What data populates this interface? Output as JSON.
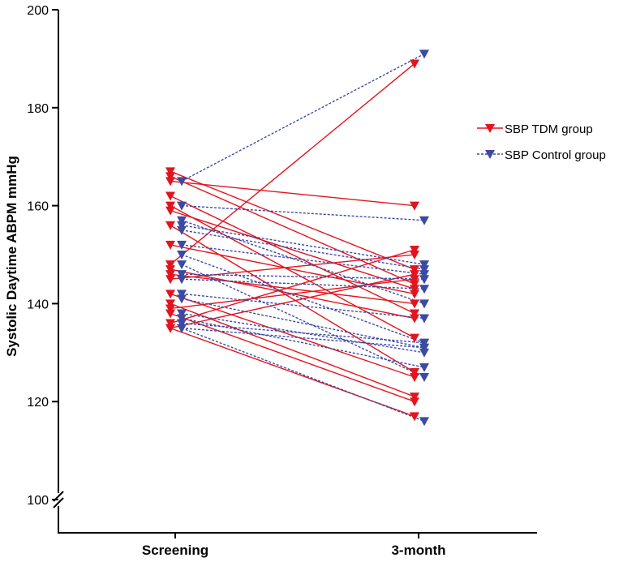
{
  "chart_data": {
    "type": "line",
    "ylabel": "Systolic Daytime ABPM mmHg",
    "categories": [
      "Screening",
      "3-month"
    ],
    "ylim": [
      100,
      200
    ],
    "yticks": [
      "100",
      "120",
      "140",
      "160",
      "180",
      "200"
    ],
    "colors": {
      "tdm": "#e3141e",
      "control": "#3b4aa3"
    },
    "series": [
      {
        "name": "SBP TDM group",
        "pairs": [
          [
            167,
            147
          ],
          [
            166,
            144
          ],
          [
            165,
            160
          ],
          [
            162,
            138
          ],
          [
            160,
            133
          ],
          [
            159,
            143
          ],
          [
            156,
            126
          ],
          [
            152,
            142
          ],
          [
            148,
            189
          ],
          [
            147,
            137
          ],
          [
            146,
            140
          ],
          [
            145,
            150
          ],
          [
            142,
            125
          ],
          [
            140,
            121
          ],
          [
            139,
            145
          ],
          [
            138,
            120
          ],
          [
            136,
            151
          ],
          [
            135,
            117
          ],
          [
            135,
            146
          ]
        ]
      },
      {
        "name": "SBP Control group",
        "pairs": [
          [
            165,
            191
          ],
          [
            160,
            157
          ],
          [
            157,
            140
          ],
          [
            156,
            148
          ],
          [
            155,
            147
          ],
          [
            152,
            146
          ],
          [
            150,
            132
          ],
          [
            148,
            125
          ],
          [
            146,
            145
          ],
          [
            145,
            143
          ],
          [
            142,
            137
          ],
          [
            141,
            131
          ],
          [
            138,
            130
          ],
          [
            137,
            127
          ],
          [
            136,
            132
          ],
          [
            135,
            116
          ],
          [
            135,
            131
          ]
        ]
      }
    ]
  }
}
